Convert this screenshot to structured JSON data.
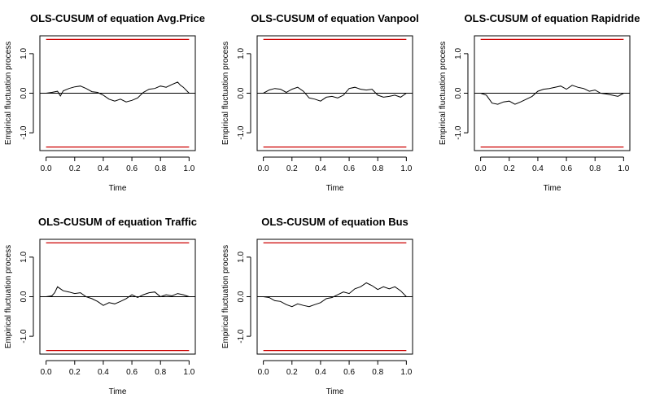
{
  "colors": {
    "boundary": "#cc0000",
    "process": "#000000",
    "zero_line": "#000000"
  },
  "chart_data": [
    {
      "type": "line",
      "title": "OLS-CUSUM of equation Avg.Price",
      "xlabel": "Time",
      "ylabel": "Empirical fluctuation process",
      "xlim": [
        0,
        1
      ],
      "ylim": [
        -1.45,
        1.45
      ],
      "x_ticks": [
        "0.0",
        "0.2",
        "0.4",
        "0.6",
        "0.8",
        "1.0"
      ],
      "y_ticks": [
        "-1.0",
        "0.0",
        "1.0"
      ],
      "boundary": 1.36,
      "grid": false,
      "series": [
        {
          "x": [
            0,
            0.04,
            0.08,
            0.1,
            0.12,
            0.16,
            0.2,
            0.24,
            0.28,
            0.32,
            0.36,
            0.4,
            0.44,
            0.48,
            0.52,
            0.56,
            0.6,
            0.64,
            0.68,
            0.72,
            0.76,
            0.8,
            0.84,
            0.88,
            0.92,
            0.94,
            0.96,
            1.0
          ],
          "y": [
            0,
            0.02,
            0.05,
            -0.07,
            0.06,
            0.12,
            0.16,
            0.18,
            0.12,
            0.04,
            0.02,
            -0.05,
            -0.15,
            -0.2,
            -0.15,
            -0.22,
            -0.18,
            -0.12,
            0.02,
            0.1,
            0.12,
            0.18,
            0.15,
            0.22,
            0.28,
            0.2,
            0.15,
            0.0
          ]
        }
      ]
    },
    {
      "type": "line",
      "title": "OLS-CUSUM of equation Vanpool",
      "xlabel": "Time",
      "ylabel": "Empirical fluctuation process",
      "xlim": [
        0,
        1
      ],
      "ylim": [
        -1.45,
        1.45
      ],
      "x_ticks": [
        "0.0",
        "0.2",
        "0.4",
        "0.6",
        "0.8",
        "1.0"
      ],
      "y_ticks": [
        "-1.0",
        "0.0",
        "1.0"
      ],
      "boundary": 1.36,
      "grid": false,
      "series": [
        {
          "x": [
            0,
            0.04,
            0.08,
            0.12,
            0.16,
            0.2,
            0.24,
            0.28,
            0.32,
            0.36,
            0.4,
            0.44,
            0.48,
            0.52,
            0.56,
            0.6,
            0.64,
            0.68,
            0.72,
            0.76,
            0.8,
            0.84,
            0.88,
            0.92,
            0.96,
            1.0
          ],
          "y": [
            0,
            0.08,
            0.12,
            0.1,
            0.02,
            0.1,
            0.15,
            0.05,
            -0.12,
            -0.15,
            -0.2,
            -0.1,
            -0.08,
            -0.12,
            -0.05,
            0.12,
            0.15,
            0.1,
            0.08,
            0.1,
            -0.05,
            -0.1,
            -0.08,
            -0.05,
            -0.1,
            0.0
          ]
        }
      ]
    },
    {
      "type": "line",
      "title": "OLS-CUSUM of equation Rapidride",
      "xlabel": "Time",
      "ylabel": "Empirical fluctuation process",
      "xlim": [
        0,
        1
      ],
      "ylim": [
        -1.45,
        1.45
      ],
      "x_ticks": [
        "0.0",
        "0.2",
        "0.4",
        "0.6",
        "0.8",
        "1.0"
      ],
      "y_ticks": [
        "-1.0",
        "0.0",
        "1.0"
      ],
      "boundary": 1.36,
      "grid": false,
      "series": [
        {
          "x": [
            0,
            0.04,
            0.08,
            0.12,
            0.16,
            0.2,
            0.24,
            0.28,
            0.32,
            0.36,
            0.4,
            0.44,
            0.48,
            0.52,
            0.56,
            0.6,
            0.64,
            0.68,
            0.72,
            0.76,
            0.8,
            0.84,
            0.88,
            0.92,
            0.96,
            1.0
          ],
          "y": [
            0,
            -0.05,
            -0.25,
            -0.28,
            -0.22,
            -0.2,
            -0.28,
            -0.22,
            -0.15,
            -0.08,
            0.05,
            0.1,
            0.12,
            0.15,
            0.18,
            0.1,
            0.2,
            0.15,
            0.12,
            0.05,
            0.08,
            0.0,
            -0.02,
            -0.05,
            -0.08,
            0.0
          ]
        }
      ]
    },
    {
      "type": "line",
      "title": "OLS-CUSUM of equation Traffic",
      "xlabel": "Time",
      "ylabel": "Empirical fluctuation process",
      "xlim": [
        0,
        1
      ],
      "ylim": [
        -1.45,
        1.45
      ],
      "x_ticks": [
        "0.0",
        "0.2",
        "0.4",
        "0.6",
        "0.8",
        "1.0"
      ],
      "y_ticks": [
        "-1.0",
        "0.0",
        "1.0"
      ],
      "boundary": 1.36,
      "grid": false,
      "series": [
        {
          "x": [
            0,
            0.04,
            0.06,
            0.08,
            0.1,
            0.12,
            0.16,
            0.2,
            0.24,
            0.28,
            0.32,
            0.36,
            0.4,
            0.44,
            0.48,
            0.52,
            0.56,
            0.6,
            0.64,
            0.68,
            0.72,
            0.76,
            0.8,
            0.84,
            0.88,
            0.92,
            0.96,
            1.0
          ],
          "y": [
            0,
            0.02,
            0.1,
            0.25,
            0.2,
            0.15,
            0.12,
            0.08,
            0.1,
            0.0,
            -0.05,
            -0.12,
            -0.22,
            -0.15,
            -0.18,
            -0.12,
            -0.05,
            0.05,
            -0.02,
            0.05,
            0.1,
            0.12,
            0.0,
            0.05,
            0.02,
            0.08,
            0.05,
            0.0
          ]
        }
      ]
    },
    {
      "type": "line",
      "title": "OLS-CUSUM of equation Bus",
      "xlabel": "Time",
      "ylabel": "Empirical fluctuation process",
      "xlim": [
        0,
        1
      ],
      "ylim": [
        -1.45,
        1.45
      ],
      "x_ticks": [
        "0.0",
        "0.2",
        "0.4",
        "0.6",
        "0.8",
        "1.0"
      ],
      "y_ticks": [
        "-1.0",
        "0.0",
        "1.0"
      ],
      "boundary": 1.36,
      "grid": false,
      "series": [
        {
          "x": [
            0,
            0.04,
            0.08,
            0.12,
            0.16,
            0.2,
            0.24,
            0.28,
            0.32,
            0.36,
            0.4,
            0.44,
            0.48,
            0.52,
            0.56,
            0.6,
            0.64,
            0.68,
            0.72,
            0.76,
            0.8,
            0.84,
            0.88,
            0.92,
            0.96,
            1.0
          ],
          "y": [
            0,
            -0.02,
            -0.1,
            -0.12,
            -0.2,
            -0.25,
            -0.18,
            -0.22,
            -0.25,
            -0.2,
            -0.15,
            -0.05,
            -0.02,
            0.05,
            0.12,
            0.08,
            0.2,
            0.25,
            0.35,
            0.28,
            0.18,
            0.25,
            0.2,
            0.25,
            0.15,
            0.0
          ]
        }
      ]
    }
  ]
}
